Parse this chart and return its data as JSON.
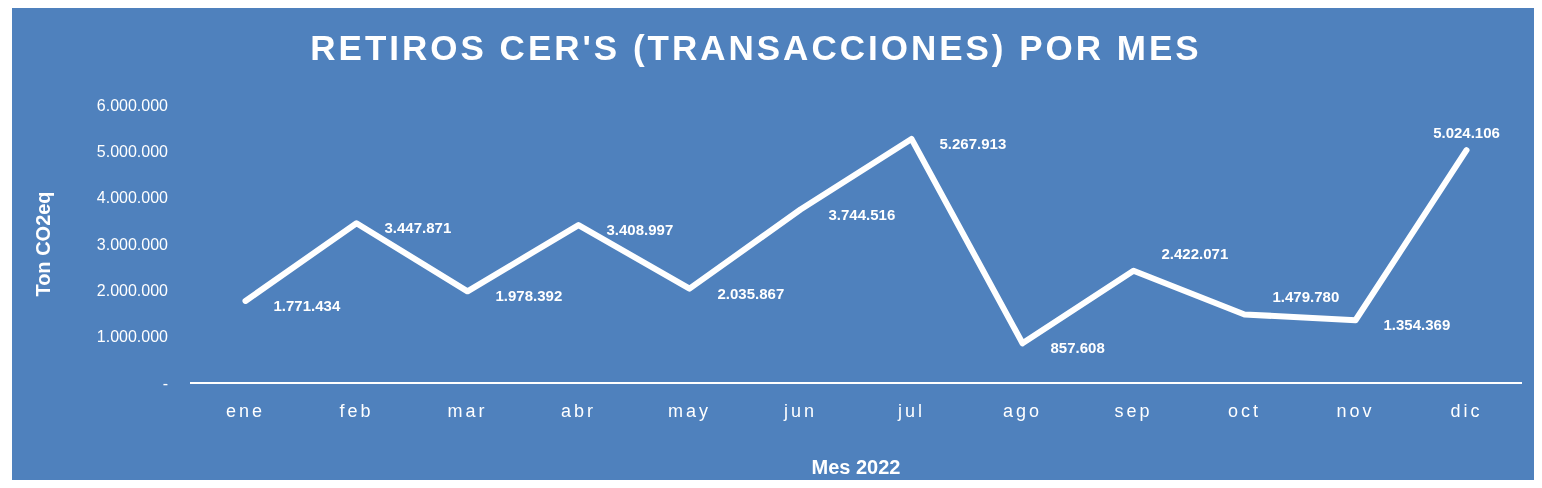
{
  "chart_data": {
    "type": "line",
    "title": "RETIROS CER'S (TRANSACCIONES) POR MES",
    "xlabel": "Mes 2022",
    "ylabel": "Ton CO2eq",
    "categories": [
      "ene",
      "feb",
      "mar",
      "abr",
      "may",
      "jun",
      "jul",
      "ago",
      "sep",
      "oct",
      "nov",
      "dic"
    ],
    "series": [
      {
        "color": "#ffffff",
        "values": [
          1771434,
          3447871,
          1978392,
          3408997,
          2035867,
          3744516,
          5267913,
          857608,
          2422071,
          1479780,
          1354369,
          5024106
        ],
        "value_labels": [
          "1.771.434",
          "3.447.871",
          "1.978.392",
          "3.408.997",
          "2.035.867",
          "3.744.516",
          "5.267.913",
          "857.608",
          "2.422.071",
          "1.479.780",
          "1.354.369",
          "5.024.106"
        ]
      }
    ],
    "ylim": [
      0,
      6000000
    ],
    "yticks": [
      {
        "value": 0,
        "label": "-"
      },
      {
        "value": 1000000,
        "label": "1.000.000"
      },
      {
        "value": 2000000,
        "label": "2.000.000"
      },
      {
        "value": 3000000,
        "label": "3.000.000"
      },
      {
        "value": 4000000,
        "label": "4.000.000"
      },
      {
        "value": 5000000,
        "label": "5.000.000"
      },
      {
        "value": 6000000,
        "label": "6.000.000"
      }
    ],
    "grid": false,
    "marker": "none",
    "line_style": "solid"
  }
}
